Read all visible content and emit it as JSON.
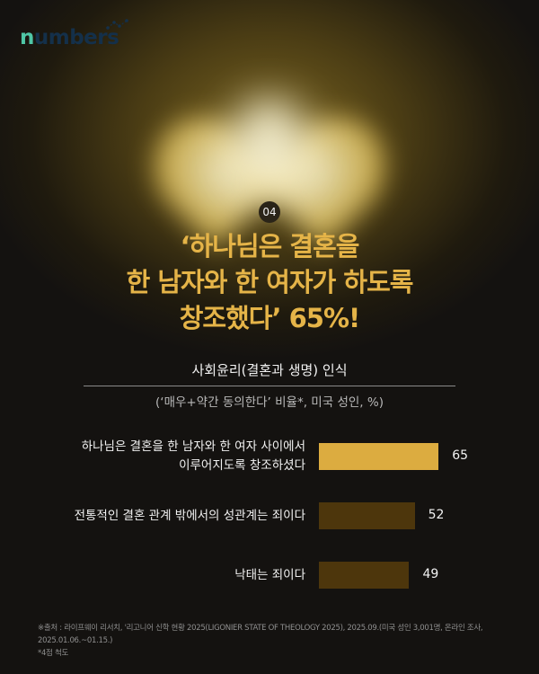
{
  "brand": {
    "logo_first": "n",
    "logo_rest": "umbers"
  },
  "badge": "04",
  "title_lines": [
    "‘하나님은 결혼을",
    "한 남자와 한 여자가 하도록",
    "창조했다’ 65%!"
  ],
  "colors": {
    "title": "#e5b448",
    "highlight_bar": "#dcac40",
    "bar": "#4d360c"
  },
  "chart_data": {
    "type": "bar",
    "orientation": "horizontal",
    "title": "사회윤리(결혼과 생명) 인식",
    "subtitle": "(‘매우+약간 동의한다’ 비율*, 미국 성인, %)",
    "categories": [
      "하나님은 결혼을 한 남자와 한 여자 사이에서\n이루어지도록 창조하셨다",
      "전통적인 결혼 관계 밖에서의 성관계는 죄이다",
      "낙태는 죄이다"
    ],
    "values": [
      65,
      52,
      49
    ],
    "data_labels": [
      "65",
      "52",
      "49"
    ],
    "highlight_index": 0
  },
  "footer": {
    "source": "※출처 : 라이프웨이 리서치, '리고니어 신학 현황 2025(LIGONIER STATE OF THEOLOGY 2025), 2025.09.(미국 성인 3,001명, 온라인 조사, 2025.01.06.~01.15.)",
    "scale_note": "*4점 척도"
  }
}
